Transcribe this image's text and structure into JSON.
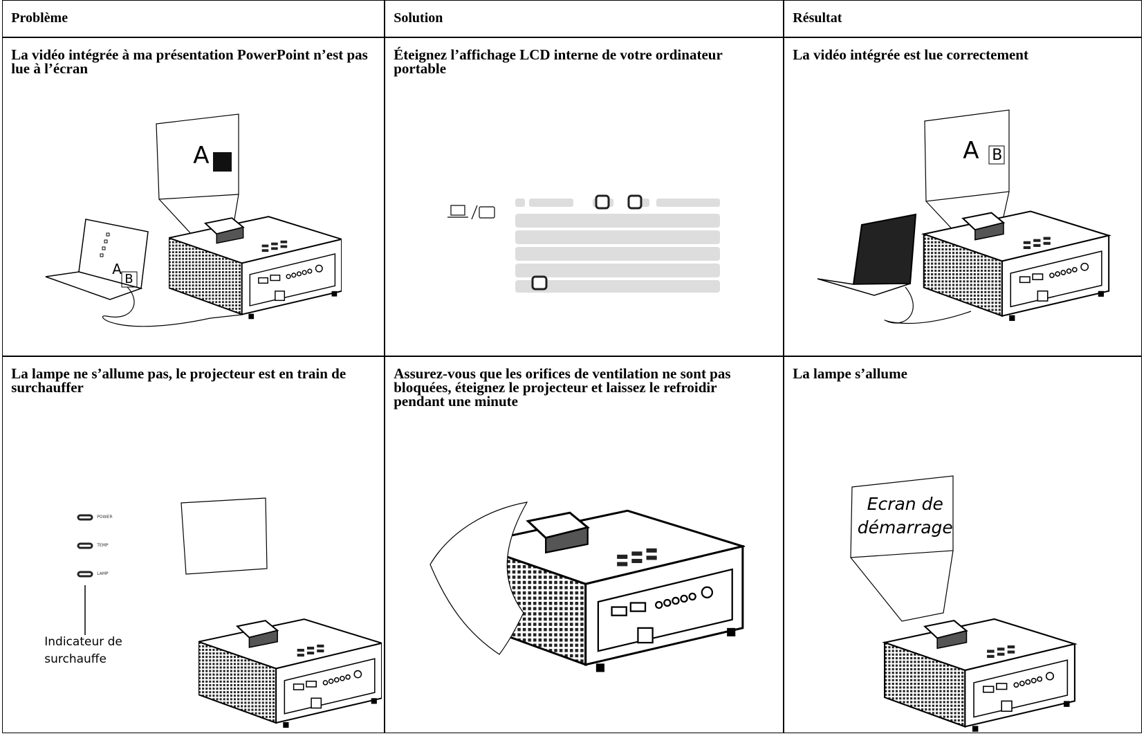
{
  "table": {
    "header": [
      "Problème",
      "Solution",
      "Résultat"
    ],
    "rows": [
      [
        "La vidéo intégrée à ma présentation PowerPoint n’est pas lue à l’écran",
        "Éteignez l’affichage LCD interne de votre ordinateur portable",
        "La vidéo intégrée est lue correctement"
      ],
      [
        "La lampe ne s’allume pas, le projecteur est en train de surchauffer",
        "Assurez-vous que les orifices de ventilation ne sont pas bloquées, éteignez le projecteur et laissez le refroidir pendant une minute",
        "La lampe s’allume"
      ]
    ]
  },
  "figures": {
    "rows": [
      [
        [
          "A",
          "A",
          "B"
        ],
        [],
        [
          "A",
          "B"
        ]
      ],
      [
        [
          "POWER",
          "TEMP",
          "LAMP",
          "Indicateur de surchauffe"
        ],
        [],
        [
          "Ecran de démarrage"
        ]
      ]
    ]
  }
}
